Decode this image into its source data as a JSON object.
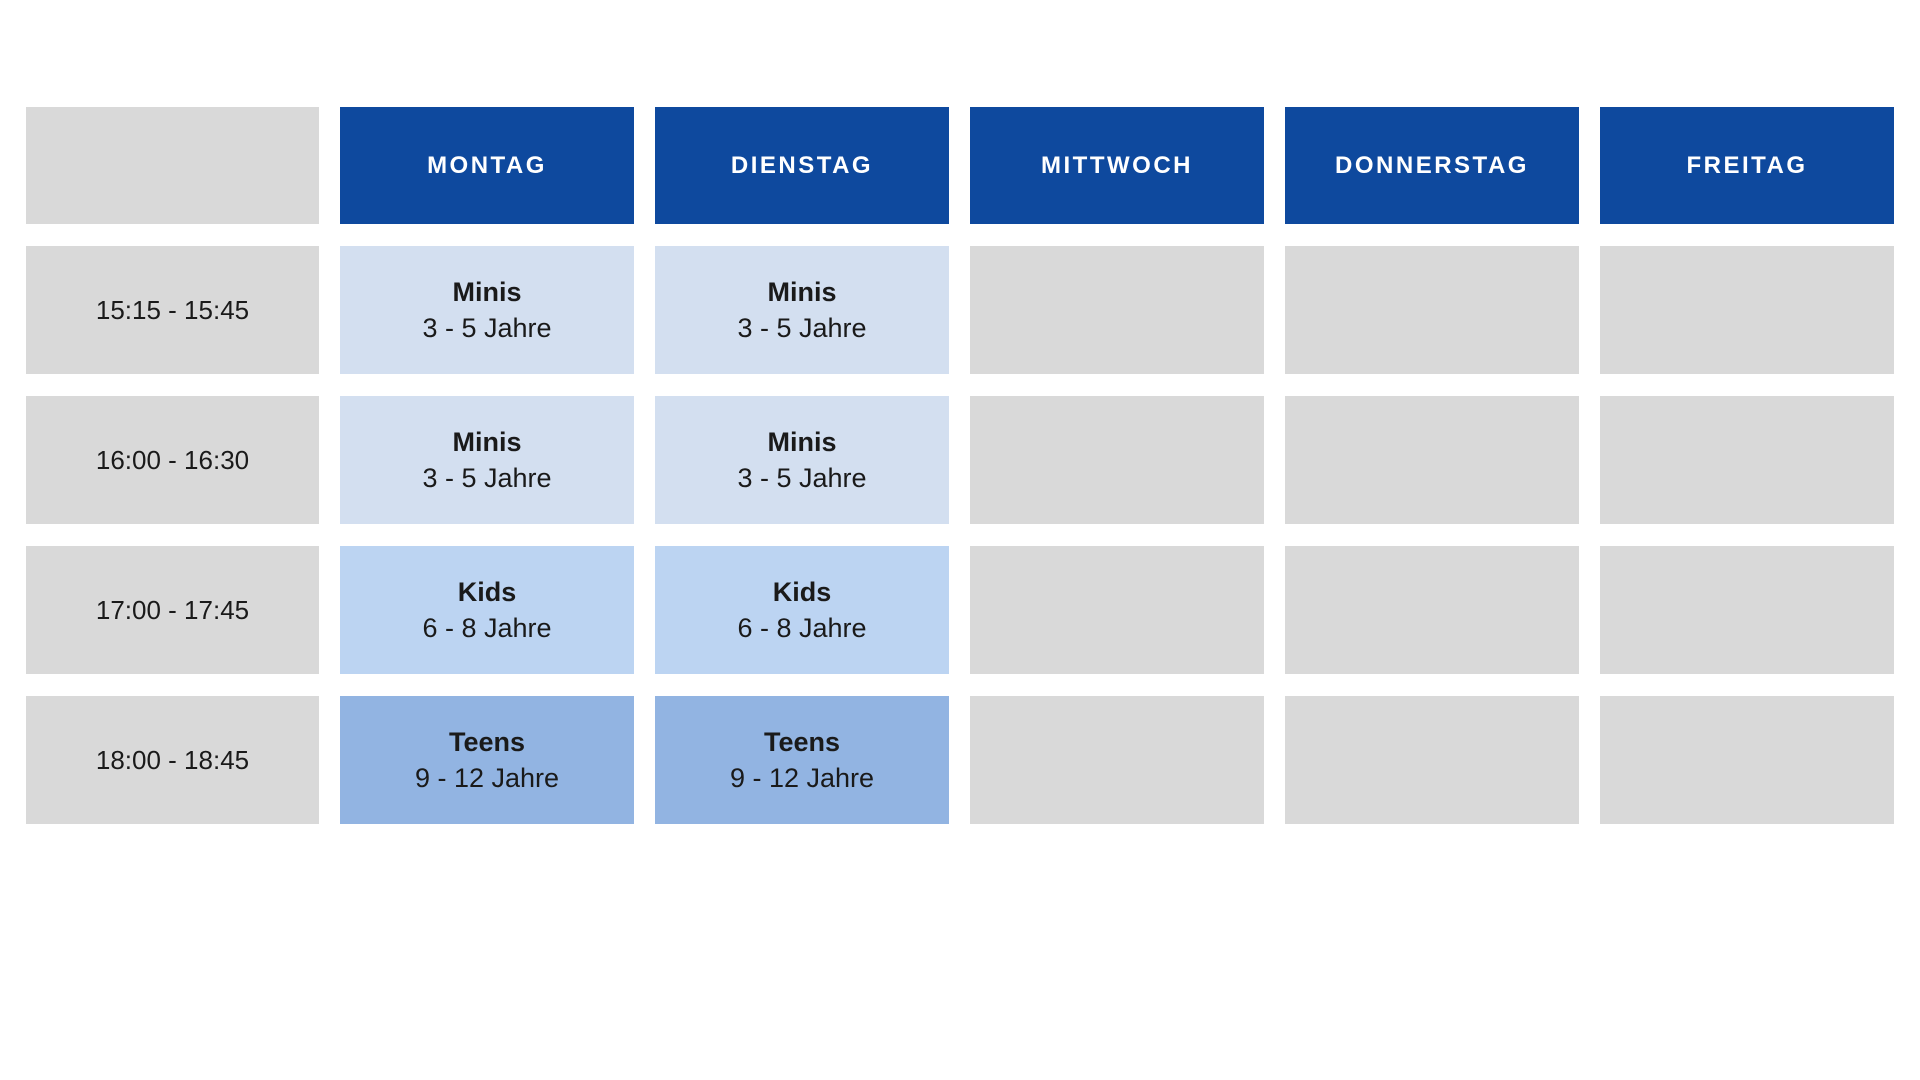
{
  "colors": {
    "page-bg": "#ffffff",
    "header-blue": "#0e499e",
    "cell-gray": "#d9d9d9",
    "minis-blue": "#d3dff0",
    "kids-blue": "#bcd4f2",
    "teens-blue": "#92b4e2",
    "header-text": "#ffffff",
    "body-text": "#1a1a1a"
  },
  "schedule": {
    "days": [
      "MONTAG",
      "DIENSTAG",
      "MITTWOCH",
      "DONNERSTAG",
      "FREITAG"
    ],
    "rows": [
      {
        "time": "15:15 - 15:45",
        "cells": [
          {
            "day": "MONTAG",
            "title": "Minis",
            "subtitle": "3 - 5 Jahre",
            "group": "minis"
          },
          {
            "day": "DIENSTAG",
            "title": "Minis",
            "subtitle": "3 - 5 Jahre",
            "group": "minis"
          },
          {
            "day": "MITTWOCH",
            "empty": true
          },
          {
            "day": "DONNERSTAG",
            "empty": true
          },
          {
            "day": "FREITAG",
            "empty": true
          }
        ]
      },
      {
        "time": "16:00 - 16:30",
        "cells": [
          {
            "day": "MONTAG",
            "title": "Minis",
            "subtitle": "3 - 5 Jahre",
            "group": "minis"
          },
          {
            "day": "DIENSTAG",
            "title": "Minis",
            "subtitle": "3 - 5 Jahre",
            "group": "minis"
          },
          {
            "day": "MITTWOCH",
            "empty": true
          },
          {
            "day": "DONNERSTAG",
            "empty": true
          },
          {
            "day": "FREITAG",
            "empty": true
          }
        ]
      },
      {
        "time": "17:00 - 17:45",
        "cells": [
          {
            "day": "MONTAG",
            "title": "Kids",
            "subtitle": "6 - 8 Jahre",
            "group": "kids"
          },
          {
            "day": "DIENSTAG",
            "title": "Kids",
            "subtitle": "6 - 8 Jahre",
            "group": "kids"
          },
          {
            "day": "MITTWOCH",
            "empty": true
          },
          {
            "day": "DONNERSTAG",
            "empty": true
          },
          {
            "day": "FREITAG",
            "empty": true
          }
        ]
      },
      {
        "time": "18:00 - 18:45",
        "cells": [
          {
            "day": "MONTAG",
            "title": "Teens",
            "subtitle": "9 - 12 Jahre",
            "group": "teens"
          },
          {
            "day": "DIENSTAG",
            "title": "Teens",
            "subtitle": "9 - 12 Jahre",
            "group": "teens"
          },
          {
            "day": "MITTWOCH",
            "empty": true
          },
          {
            "day": "DONNERSTAG",
            "empty": true
          },
          {
            "day": "FREITAG",
            "empty": true
          }
        ]
      }
    ]
  }
}
